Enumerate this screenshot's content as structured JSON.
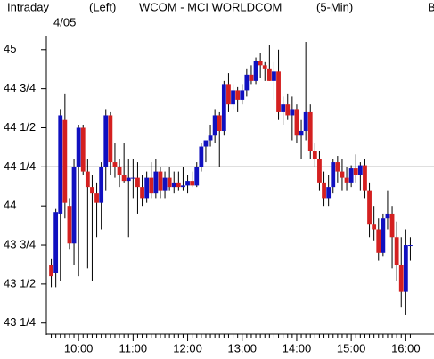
{
  "chart_data": {
    "type": "candlestick",
    "header": {
      "feed": "Intraday",
      "side": "(Left)",
      "symbol": "WCOM - MCI WORLDCOM",
      "interval": "(5-Min)",
      "date": "4/05",
      "edge": "B"
    },
    "categories": [
      null,
      null,
      null,
      null,
      null,
      null,
      "10:00",
      null,
      null,
      null,
      null,
      null,
      null,
      null,
      null,
      null,
      null,
      null,
      "11:00",
      null,
      null,
      null,
      null,
      null,
      null,
      null,
      null,
      null,
      null,
      null,
      "12:00",
      null,
      null,
      null,
      null,
      null,
      null,
      null,
      null,
      null,
      null,
      null,
      "13:00",
      null,
      null,
      null,
      null,
      null,
      null,
      null,
      null,
      null,
      null,
      null,
      "14:00",
      null,
      null,
      null,
      null,
      null,
      null,
      null,
      null,
      null,
      null,
      null,
      "15:00",
      null,
      null,
      null,
      null,
      null,
      null,
      null,
      null,
      null,
      null,
      null,
      "16:00",
      null
    ],
    "open": [
      43.62,
      43.57,
      43.95,
      44.55,
      44.0,
      43.76,
      44.25,
      44.5,
      44.22,
      44.12,
      44.08,
      44.02,
      44.25,
      44.58,
      44.28,
      44.25,
      44.2,
      44.16,
      44.18,
      44.18,
      44.12,
      44.05,
      44.18,
      44.08,
      44.22,
      44.1,
      44.18,
      44.12,
      44.15,
      44.12,
      44.13,
      44.16,
      44.13,
      44.25,
      44.38,
      44.42,
      44.45,
      44.58,
      44.48,
      44.78,
      44.65,
      44.74,
      44.68,
      44.74,
      44.84,
      44.8,
      44.93,
      44.9,
      44.88,
      44.8,
      44.86,
      44.6,
      44.65,
      44.58,
      44.62,
      44.45,
      44.48,
      44.6,
      44.35,
      44.3,
      44.15,
      44.05,
      44.12,
      44.28,
      44.22,
      44.18,
      44.15,
      44.24,
      44.2,
      44.26,
      44.1,
      43.88,
      43.85,
      43.7,
      43.92,
      43.95,
      43.8,
      43.62,
      43.45,
      43.75
    ],
    "high": [
      43.66,
      43.98,
      44.62,
      44.72,
      44.05,
      44.3,
      44.52,
      44.52,
      44.3,
      44.2,
      44.15,
      44.28,
      44.62,
      44.6,
      44.4,
      44.3,
      44.4,
      44.3,
      44.3,
      44.28,
      44.2,
      44.22,
      44.28,
      44.3,
      44.25,
      44.22,
      44.25,
      44.22,
      44.22,
      44.25,
      44.2,
      44.22,
      44.28,
      44.4,
      44.42,
      44.52,
      44.62,
      44.6,
      44.8,
      44.85,
      44.78,
      44.76,
      44.78,
      44.88,
      44.9,
      44.95,
      44.98,
      44.92,
      45.03,
      44.92,
      45.0,
      44.7,
      44.72,
      44.7,
      44.65,
      44.55,
      45.05,
      44.65,
      44.4,
      44.35,
      44.22,
      44.2,
      44.3,
      44.32,
      44.3,
      44.25,
      44.26,
      44.33,
      44.28,
      44.3,
      44.15,
      44.0,
      43.92,
      43.95,
      44.1,
      44.0,
      43.9,
      43.8,
      43.85,
      43.8
    ],
    "low": [
      43.48,
      43.48,
      43.52,
      43.92,
      43.72,
      43.62,
      43.55,
      44.2,
      43.6,
      43.52,
      43.8,
      43.85,
      44.1,
      44.2,
      44.18,
      44.12,
      44.15,
      43.8,
      44.05,
      43.95,
      44.0,
      44.02,
      44.05,
      44.05,
      44.05,
      44.05,
      44.1,
      44.08,
      44.1,
      44.1,
      44.08,
      44.12,
      44.12,
      44.22,
      44.28,
      44.38,
      44.4,
      44.25,
      44.45,
      44.6,
      44.62,
      44.6,
      44.65,
      44.7,
      44.78,
      44.78,
      44.82,
      44.8,
      44.8,
      44.68,
      44.55,
      44.52,
      44.55,
      44.42,
      44.4,
      44.3,
      44.42,
      44.3,
      44.25,
      44.1,
      44.0,
      44.0,
      44.08,
      44.15,
      44.1,
      44.1,
      44.12,
      44.15,
      44.1,
      44.05,
      43.8,
      43.78,
      43.65,
      43.68,
      43.85,
      43.6,
      43.52,
      43.35,
      43.3,
      43.65
    ],
    "close": [
      43.55,
      43.96,
      44.58,
      44.02,
      43.76,
      44.25,
      44.5,
      44.22,
      44.12,
      44.08,
      44.02,
      44.25,
      44.58,
      44.28,
      44.25,
      44.2,
      44.16,
      44.18,
      44.18,
      44.12,
      44.05,
      44.18,
      44.08,
      44.22,
      44.1,
      44.18,
      44.12,
      44.15,
      44.12,
      44.13,
      44.16,
      44.13,
      44.25,
      44.38,
      44.42,
      44.45,
      44.58,
      44.48,
      44.78,
      44.65,
      44.74,
      44.68,
      44.74,
      44.84,
      44.8,
      44.93,
      44.9,
      44.88,
      44.8,
      44.86,
      44.6,
      44.65,
      44.58,
      44.62,
      44.45,
      44.48,
      44.6,
      44.35,
      44.3,
      44.15,
      44.05,
      44.12,
      44.28,
      44.22,
      44.18,
      44.15,
      44.24,
      44.2,
      44.26,
      44.1,
      43.88,
      43.85,
      43.7,
      43.92,
      43.95,
      43.8,
      43.62,
      43.45,
      43.75,
      43.75
    ],
    "up_color": "#1010c0",
    "down_color": "#d42020",
    "reference_line": 44.25,
    "ylim": [
      43.18,
      45.09
    ],
    "yticks": [
      {
        "value": 43.25,
        "label": "43 1/4"
      },
      {
        "value": 43.5,
        "label": "43 1/2"
      },
      {
        "value": 43.75,
        "label": "43 3/4"
      },
      44,
      {
        "value": 44.25,
        "label": "44 1/4"
      },
      {
        "value": 44.5,
        "label": "44 1/2"
      },
      {
        "value": 44.75,
        "label": "44 3/4"
      },
      45
    ]
  }
}
